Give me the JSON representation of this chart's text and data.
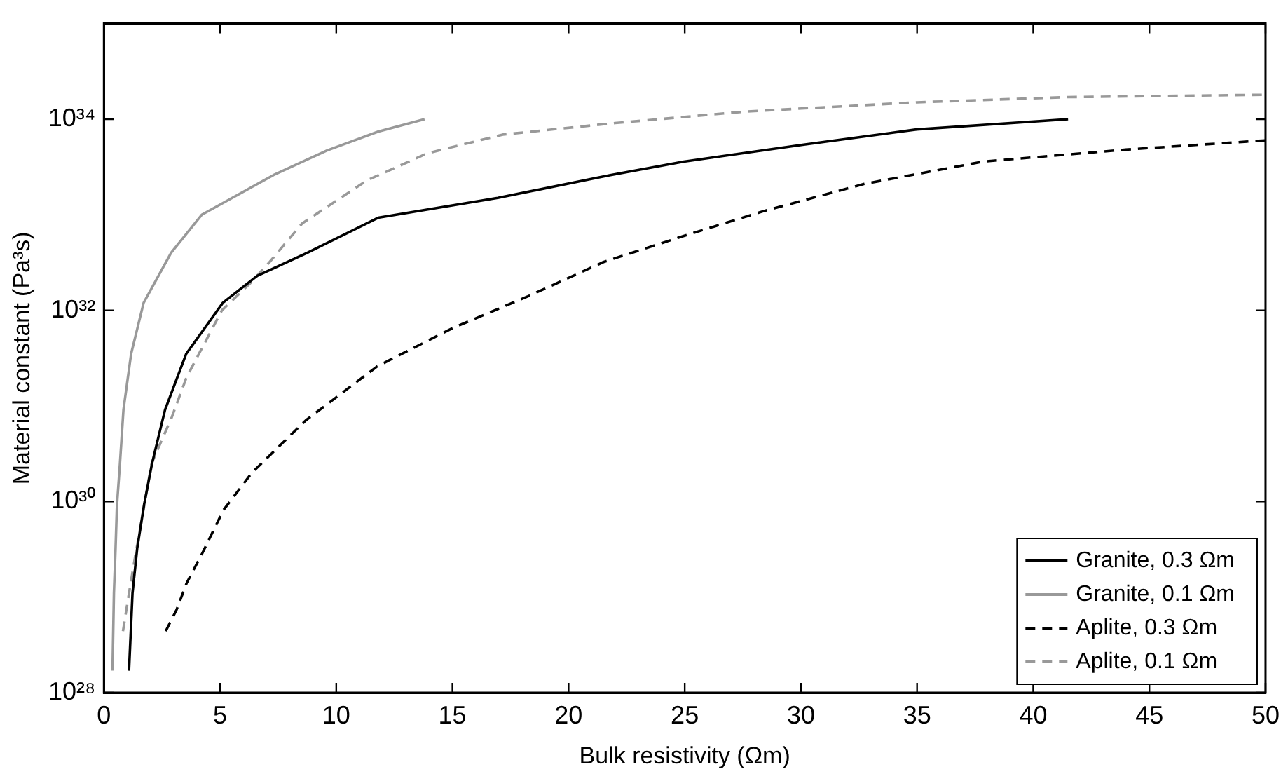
{
  "chart_data": {
    "type": "line",
    "xlabel": "Bulk resistivity (Ωm)",
    "ylabel": "Material constant (Pa³s)",
    "log": "y",
    "xlim": [
      0,
      50
    ],
    "xticks": [
      0,
      5,
      10,
      15,
      20,
      25,
      30,
      35,
      40,
      45,
      50
    ],
    "ylim": [
      1e+28,
      1e+35
    ],
    "yticks": [
      {
        "value": 1e+28,
        "label": "10²⁸"
      },
      {
        "value": 1e+30,
        "label": "10³⁰"
      },
      {
        "value": 1e+32,
        "label": "10³²"
      },
      {
        "value": 1e+34,
        "label": "10³⁴"
      }
    ],
    "grid": false,
    "legend": "bottom right",
    "series": [
      {
        "name": "Granite, 0.3 Ωm",
        "color": "#000000",
        "line_style": "solid",
        "x": [
          1.08,
          1.23,
          1.43,
          1.73,
          2.07,
          2.63,
          3.54,
          5.12,
          6.6,
          8.75,
          11.8,
          16.95,
          21.8,
          24.96,
          30.07,
          34.98,
          41.5
        ],
        "values": [
          1.7e+28,
          1.1e+29,
          3.2e+29,
          9.3e+29,
          2.5e+30,
          9.1e+30,
          3.5e+31,
          1.2e+32,
          2.3e+32,
          4e+32,
          9.3e+32,
          1.5e+33,
          2.6e+33,
          3.6e+33,
          5.4e+33,
          7.8e+33,
          1e+34
        ]
      },
      {
        "name": "Granite, 0.1 Ωm",
        "color": "#999999",
        "line_style": "solid",
        "x": [
          0.37,
          0.43,
          0.5,
          0.56,
          0.69,
          0.84,
          1.17,
          1.71,
          2.89,
          4.21,
          7.3,
          9.6,
          11.8,
          13.8
        ],
        "values": [
          1.7e+28,
          1.1e+29,
          3.2e+29,
          9.1e+29,
          2.5e+30,
          9.1e+30,
          3.5e+31,
          1.2e+32,
          4e+32,
          1e+33,
          2.6e+33,
          4.7e+33,
          7.4e+33,
          1e+34
        ]
      },
      {
        "name": "Aplite, 0.3 Ωm",
        "color": "#000000",
        "line_style": "dashed",
        "x": [
          2.66,
          3.13,
          3.56,
          4.21,
          5.14,
          6.37,
          8.7,
          11.77,
          15.0,
          18.25,
          21.5,
          24.96,
          28.44,
          32.73,
          37.85,
          43.98,
          50
        ],
        "values": [
          4.4e+28,
          7.4e+28,
          1.4e+29,
          2.8e+29,
          8.1e+29,
          2e+30,
          7.1e+30,
          2.6e+31,
          6.5e+31,
          1.4e+32,
          3.2e+32,
          6e+32,
          1.1e+33,
          2.1e+33,
          3.6e+33,
          4.8e+33,
          6e+33
        ]
      },
      {
        "name": "Aplite, 0.1 Ωm",
        "color": "#999999",
        "line_style": "dashed",
        "x": [
          0.82,
          1.08,
          1.36,
          1.73,
          2.05,
          2.92,
          3.56,
          5.08,
          6.37,
          7.13,
          8.53,
          11.34,
          13.93,
          17.17,
          22,
          27.6,
          35,
          41.5,
          50
        ],
        "values": [
          4.4e+28,
          1.1e+29,
          2.8e+29,
          8.9e+29,
          2.5e+30,
          7.6e+30,
          2e+31,
          1e+32,
          2e+32,
          3.2e+32,
          8.1e+32,
          2.3e+33,
          4.4e+33,
          6.9e+33,
          9.1e+33,
          1.2e+34,
          1.5e+34,
          1.7e+34,
          1.8e+34
        ]
      }
    ]
  }
}
